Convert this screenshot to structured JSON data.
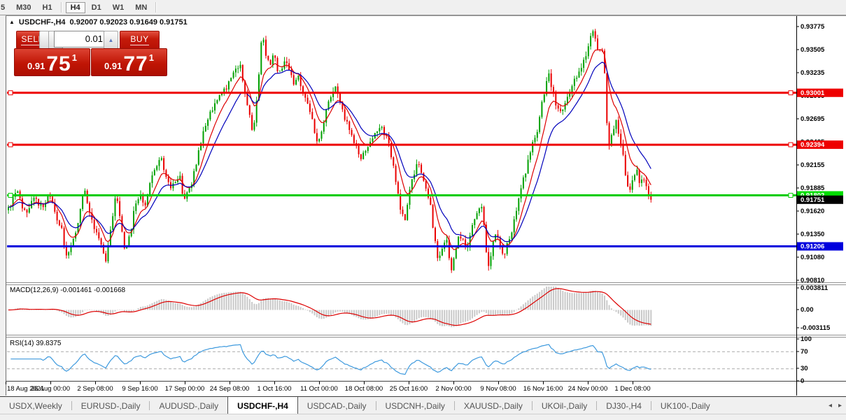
{
  "toolbar": {
    "timeframes": [
      {
        "label": "5",
        "active": false,
        "partial": true
      },
      {
        "label": "M30",
        "active": false
      },
      {
        "label": "H1",
        "active": false
      },
      {
        "label": "H4",
        "active": true
      },
      {
        "label": "D1",
        "active": false
      },
      {
        "label": "W1",
        "active": false
      },
      {
        "label": "MN",
        "active": false
      }
    ]
  },
  "chart": {
    "title": {
      "symbol": "USDCHF-,H4",
      "ohlc": "0.92007 0.92023 0.91649 0.91751"
    },
    "trade_widget": {
      "sell_label": "SELL",
      "buy_label": "BUY",
      "volume": "0.01",
      "sell_price": {
        "small": "0.91",
        "big": "75",
        "sup": "1"
      },
      "buy_price": {
        "small": "0.91",
        "big": "77",
        "sup": "1"
      }
    },
    "price_axis": {
      "ticks": [
        "0.93775",
        "0.93505",
        "0.93235",
        "0.92965",
        "0.92695",
        "0.92425",
        "0.92155",
        "0.91885",
        "0.91620",
        "0.91350",
        "0.91080",
        "0.90810"
      ]
    },
    "hlines": [
      {
        "price": 0.93001,
        "label": "0.93001",
        "color": "#ee0000"
      },
      {
        "price": 0.92394,
        "label": "0.92394",
        "color": "#ee0000"
      },
      {
        "price": 0.91802,
        "label": "0.91802",
        "color": "#00cc00"
      },
      {
        "price": 0.91206,
        "label": "0.91206",
        "color": "#0000dd"
      }
    ],
    "current_price": {
      "price": 0.91751,
      "label": "0.91751",
      "color": "#000000"
    },
    "time_axis": {
      "labels": [
        "18 Aug 2021",
        "26 Aug 00:00",
        "2 Sep 08:00",
        "9 Sep 16:00",
        "17 Sep 00:00",
        "24 Sep 08:00",
        "1 Oct 16:00",
        "11 Oct 00:00",
        "18 Oct 08:00",
        "25 Oct 16:00",
        "2 Nov 00:00",
        "9 Nov 08:00",
        "16 Nov 16:00",
        "24 Nov 00:00",
        "1 Dec 08:00"
      ]
    },
    "colors": {
      "candle_up": "#00a000",
      "candle_down": "#ea0000",
      "ma_fast": "#dd0000",
      "ma_slow": "#0000bb",
      "macd_hist": "#c9c9c9",
      "macd_signal": "#dd0000",
      "rsi_line": "#3e9ade"
    },
    "series": {
      "type": "candlestick-approximation",
      "count": 278,
      "waypoints": [
        [
          10,
          0.9163
        ],
        [
          22,
          0.9185
        ],
        [
          34,
          0.9158
        ],
        [
          46,
          0.9175
        ],
        [
          58,
          0.9168
        ],
        [
          70,
          0.918
        ],
        [
          78,
          0.9155
        ],
        [
          86,
          0.914
        ],
        [
          93,
          0.9108
        ],
        [
          100,
          0.9122
        ],
        [
          108,
          0.9145
        ],
        [
          118,
          0.9188
        ],
        [
          126,
          0.916
        ],
        [
          136,
          0.9136
        ],
        [
          144,
          0.9122
        ],
        [
          149,
          0.9103
        ],
        [
          156,
          0.914
        ],
        [
          163,
          0.918
        ],
        [
          170,
          0.9155
        ],
        [
          176,
          0.9118
        ],
        [
          183,
          0.913
        ],
        [
          190,
          0.9165
        ],
        [
          198,
          0.918
        ],
        [
          206,
          0.917
        ],
        [
          214,
          0.92
        ],
        [
          222,
          0.9215
        ],
        [
          228,
          0.9228
        ],
        [
          234,
          0.9205
        ],
        [
          241,
          0.9188
        ],
        [
          248,
          0.9198
        ],
        [
          255,
          0.9205
        ],
        [
          261,
          0.917
        ],
        [
          266,
          0.9185
        ],
        [
          272,
          0.9195
        ],
        [
          280,
          0.9225
        ],
        [
          290,
          0.926
        ],
        [
          300,
          0.928
        ],
        [
          310,
          0.9295
        ],
        [
          320,
          0.9303
        ],
        [
          328,
          0.9315
        ],
        [
          336,
          0.933
        ],
        [
          342,
          0.9333
        ],
        [
          348,
          0.93
        ],
        [
          354,
          0.9275
        ],
        [
          360,
          0.9253
        ],
        [
          366,
          0.93
        ],
        [
          371,
          0.9355
        ],
        [
          374,
          0.9368
        ],
        [
          378,
          0.934
        ],
        [
          384,
          0.9332
        ],
        [
          390,
          0.935
        ],
        [
          396,
          0.9318
        ],
        [
          403,
          0.9335
        ],
        [
          410,
          0.933
        ],
        [
          417,
          0.931
        ],
        [
          424,
          0.9318
        ],
        [
          431,
          0.93
        ],
        [
          438,
          0.9285
        ],
        [
          445,
          0.9268
        ],
        [
          451,
          0.924
        ],
        [
          457,
          0.9252
        ],
        [
          464,
          0.9278
        ],
        [
          471,
          0.9298
        ],
        [
          477,
          0.9305
        ],
        [
          484,
          0.9288
        ],
        [
          491,
          0.927
        ],
        [
          498,
          0.9255
        ],
        [
          506,
          0.924
        ],
        [
          514,
          0.9225
        ],
        [
          521,
          0.9235
        ],
        [
          528,
          0.9242
        ],
        [
          535,
          0.9255
        ],
        [
          542,
          0.9262
        ],
        [
          549,
          0.925
        ],
        [
          556,
          0.9232
        ],
        [
          563,
          0.92
        ],
        [
          570,
          0.9165
        ],
        [
          576,
          0.915
        ],
        [
          582,
          0.918
        ],
        [
          589,
          0.9205
        ],
        [
          596,
          0.922
        ],
        [
          602,
          0.9205
        ],
        [
          608,
          0.9185
        ],
        [
          613,
          0.917
        ],
        [
          618,
          0.9135
        ],
        [
          624,
          0.9105
        ],
        [
          630,
          0.9118
        ],
        [
          636,
          0.9128
        ],
        [
          642,
          0.9092
        ],
        [
          648,
          0.911
        ],
        [
          654,
          0.9135
        ],
        [
          660,
          0.9125
        ],
        [
          666,
          0.9118
        ],
        [
          672,
          0.9145
        ],
        [
          679,
          0.916
        ],
        [
          685,
          0.9172
        ],
        [
          690,
          0.9145
        ],
        [
          695,
          0.9095
        ],
        [
          701,
          0.9118
        ],
        [
          707,
          0.9138
        ],
        [
          713,
          0.912
        ],
        [
          718,
          0.9108
        ],
        [
          724,
          0.9128
        ],
        [
          730,
          0.914
        ],
        [
          736,
          0.9165
        ],
        [
          742,
          0.9185
        ],
        [
          748,
          0.9205
        ],
        [
          754,
          0.9225
        ],
        [
          760,
          0.9245
        ],
        [
          766,
          0.9258
        ],
        [
          772,
          0.9285
        ],
        [
          778,
          0.931
        ],
        [
          783,
          0.9322
        ],
        [
          788,
          0.93
        ],
        [
          794,
          0.9282
        ],
        [
          800,
          0.9275
        ],
        [
          806,
          0.9288
        ],
        [
          812,
          0.9302
        ],
        [
          818,
          0.9315
        ],
        [
          824,
          0.9322
        ],
        [
          830,
          0.9332
        ],
        [
          836,
          0.9345
        ],
        [
          841,
          0.936
        ],
        [
          845,
          0.9372
        ],
        [
          849,
          0.936
        ],
        [
          853,
          0.9352
        ],
        [
          857,
          0.9355
        ],
        [
          861,
          0.934
        ],
        [
          865,
          0.927
        ],
        [
          869,
          0.9235
        ],
        [
          874,
          0.9258
        ],
        [
          879,
          0.9268
        ],
        [
          884,
          0.9245
        ],
        [
          889,
          0.9228
        ],
        [
          893,
          0.9196
        ],
        [
          898,
          0.9185
        ],
        [
          903,
          0.9202
        ],
        [
          908,
          0.9212
        ],
        [
          913,
          0.9192
        ],
        [
          918,
          0.9202
        ],
        [
          923,
          0.9182
        ],
        [
          927,
          0.9172
        ],
        [
          930,
          0.9175
        ]
      ]
    }
  },
  "macd": {
    "label": "MACD(12,26,9) -0.001461 -0.001668",
    "axis": [
      "0.003811",
      "0.00",
      "-0.003115"
    ]
  },
  "rsi": {
    "label": "RSI(14) 39.8375",
    "axis": [
      "100",
      "70",
      "30",
      "0"
    ]
  },
  "tabs": {
    "items": [
      "USDX,Weekly",
      "EURUSD-,Daily",
      "AUDUSD-,Daily",
      "USDCHF-,H4",
      "USDCAD-,Daily",
      "USDCNH-,Daily",
      "XAUUSD-,Daily",
      "UKOil-,Daily",
      "DJ30-,H4",
      "UK100-,Daily"
    ],
    "active": "USDCHF-,H4",
    "left_arrow": "◂",
    "right_arrow": "▸"
  }
}
